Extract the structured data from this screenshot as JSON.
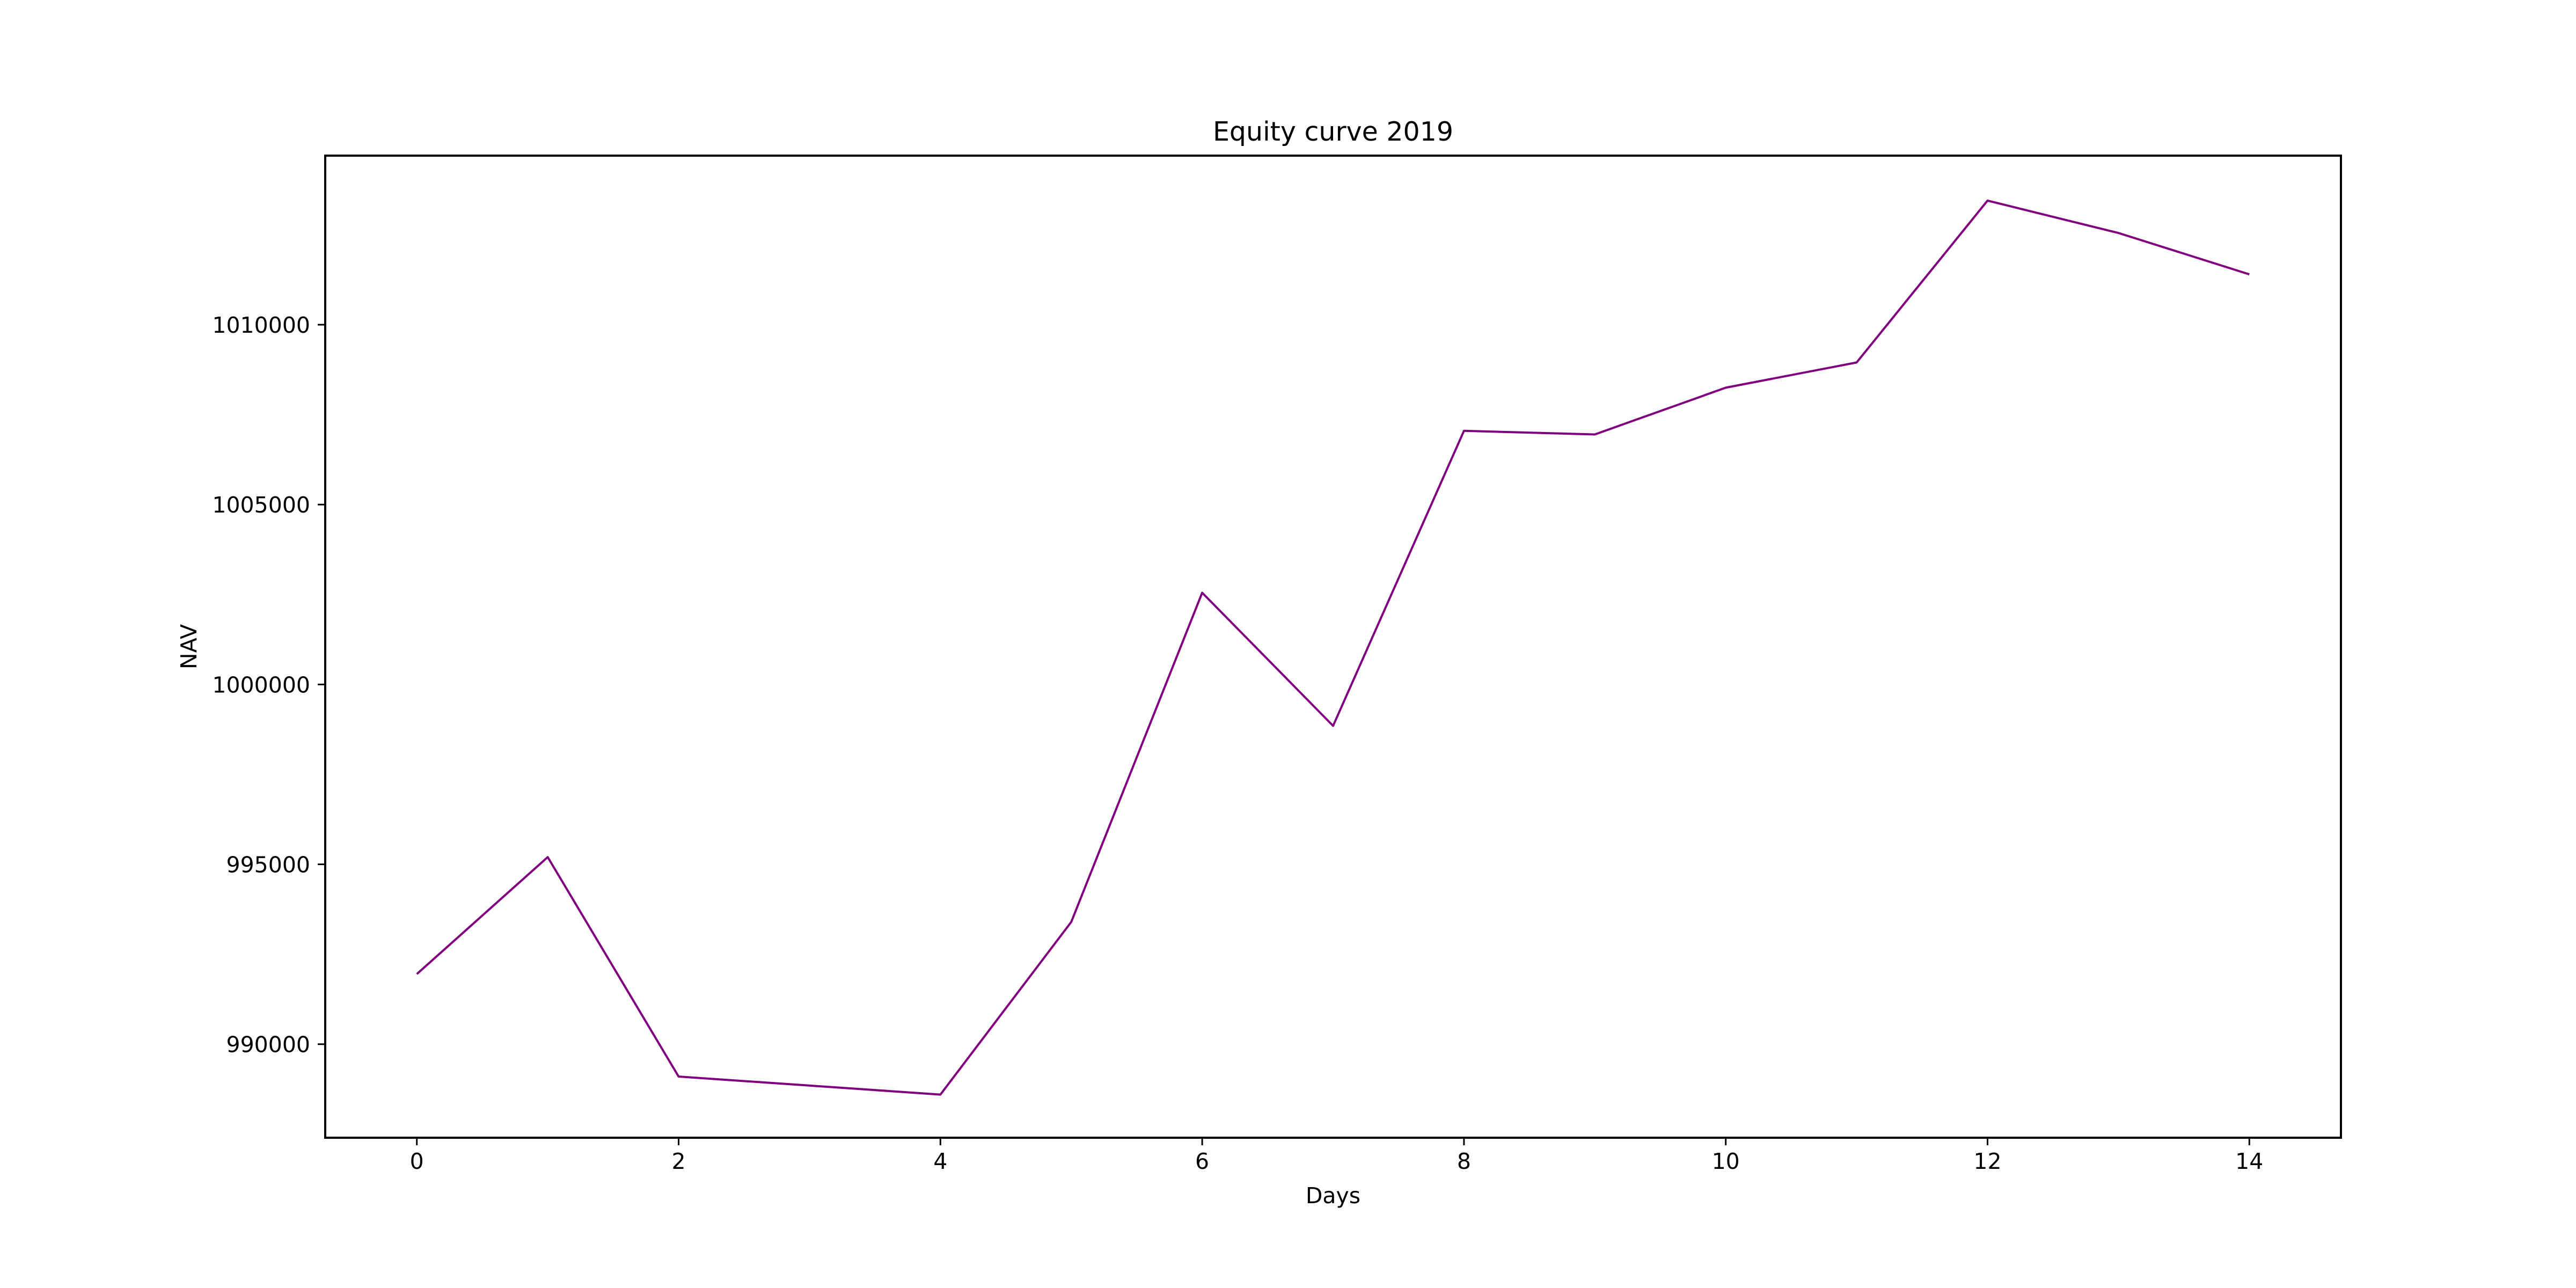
{
  "chart_data": {
    "type": "line",
    "title": "Equity curve 2019",
    "xlabel": "Days",
    "ylabel": "NAV",
    "xlim": [
      -0.7,
      14.7
    ],
    "ylim": [
      987400,
      1014700
    ],
    "x_ticks": [
      0,
      2,
      4,
      6,
      8,
      10,
      12,
      14
    ],
    "y_ticks": [
      990000,
      995000,
      1000000,
      1005000,
      1010000
    ],
    "x_tick_labels": [
      "0",
      "2",
      "4",
      "6",
      "8",
      "10",
      "12",
      "14"
    ],
    "y_tick_labels": [
      "990000",
      "995000",
      "1000000",
      "1005000",
      "1010000"
    ],
    "grid": false,
    "legend": "none",
    "series": [
      {
        "color": "#800080",
        "x": [
          0,
          1,
          2,
          3,
          4,
          5,
          6,
          7,
          8,
          9,
          10,
          11,
          12,
          13,
          14
        ],
        "y": [
          991950,
          995200,
          989100,
          988850,
          988600,
          993400,
          1002550,
          998850,
          1007050,
          1006950,
          1008250,
          1008950,
          1013450,
          1012550,
          1011400
        ]
      }
    ]
  }
}
